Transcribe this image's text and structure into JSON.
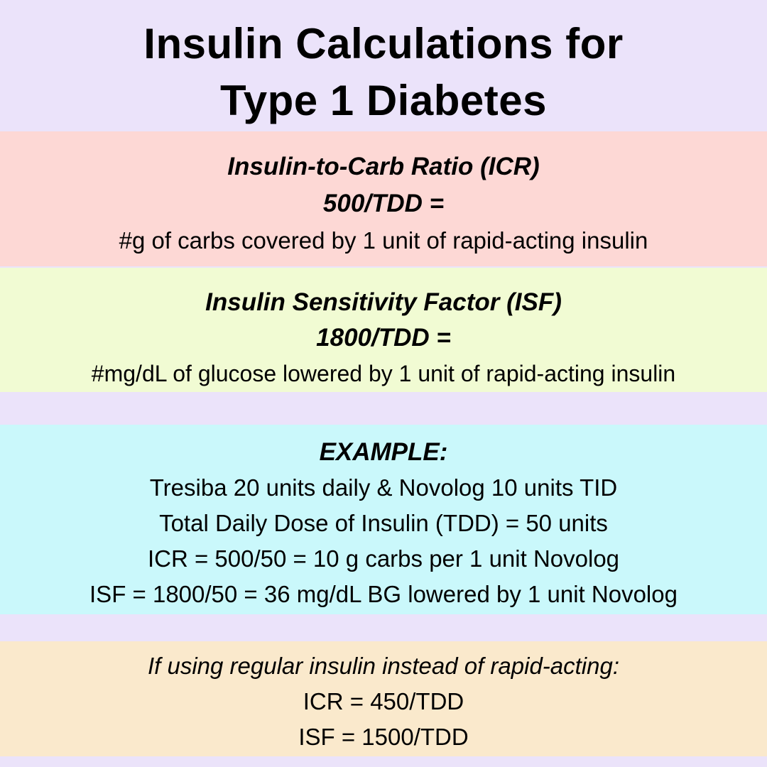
{
  "title": {
    "line1": "Insulin Calculations for",
    "line2": "Type 1 Diabetes"
  },
  "icr": {
    "heading": "Insulin-to-Carb Ratio (ICR)",
    "formula": "500/TDD =",
    "description": "#g of carbs covered by 1 unit of rapid-acting insulin"
  },
  "isf": {
    "heading": "Insulin Sensitivity Factor (ISF)",
    "formula": "1800/TDD =",
    "description": "#mg/dL of glucose lowered by 1 unit of rapid-acting insulin"
  },
  "example": {
    "heading": "EXAMPLE:",
    "lines": [
      "Tresiba 20 units daily & Novolog 10 units TID",
      "Total Daily Dose of Insulin (TDD) = 50 units",
      "ICR = 500/50 = 10 g carbs per 1 unit Novolog",
      "ISF = 1800/50 = 36 mg/dL BG lowered by 1 unit Novolog"
    ]
  },
  "regular": {
    "heading": "If using regular insulin instead of rapid-acting:",
    "lines": [
      "ICR = 450/TDD",
      "ISF = 1500/TDD"
    ]
  },
  "colors": {
    "background": "#ebe3fa",
    "icr_band": "#fdd8d5",
    "isf_band": "#f1fbd3",
    "example_band": "#caf8fb",
    "regular_band": "#fae9cc"
  }
}
